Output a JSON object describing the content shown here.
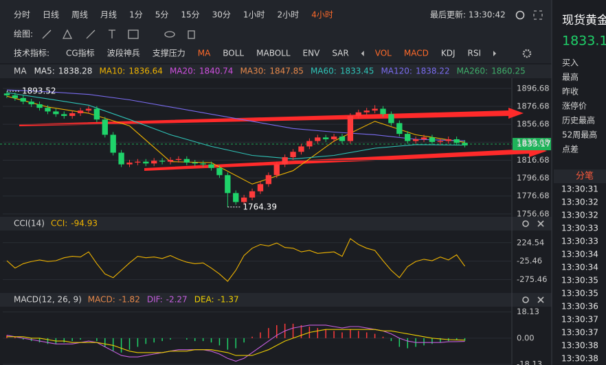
{
  "toolbar": {
    "timeframes": [
      "分时",
      "日线",
      "周线",
      "月线",
      "1分",
      "5分",
      "15分",
      "30分",
      "1小时",
      "2小时",
      "4小时"
    ],
    "active_timeframe": 10,
    "last_update": "最后更新: 13:30:42",
    "drawing_label": "绘图:",
    "indicator_label": "技术指标:",
    "indicators": [
      "CG指标",
      "波段神兵",
      "支撑压力",
      "MA",
      "BOLL",
      "MABOLL",
      "ENV",
      "SAR",
      "VOL",
      "MACD",
      "KDJ",
      "RSI"
    ],
    "highlighted_indicators": [
      3,
      8,
      9
    ]
  },
  "chart_data": [
    {
      "type": "candlestick",
      "legend_title": "MA",
      "ma_legend": [
        {
          "name": "MA5:",
          "value": 1838.28,
          "color": "#e8e8e8"
        },
        {
          "name": "MA10:",
          "value": 1836.64,
          "color": "#f0b400"
        },
        {
          "name": "MA20:",
          "value": 1840.74,
          "color": "#d050e0"
        },
        {
          "name": "MA30:",
          "value": 1847.85,
          "color": "#e8894a"
        },
        {
          "name": "MA60:",
          "value": 1833.45,
          "color": "#2fc4b8"
        },
        {
          "name": "MA120:",
          "value": 1838.22,
          "color": "#7a6cf0"
        },
        {
          "name": "MA260:",
          "value": 1860.25,
          "color": "#3fae6a"
        }
      ],
      "up_color": "#ff3b3b",
      "down_color": "#1fd36a",
      "candles": [
        [
          1891,
          1893.52,
          1886,
          1889
        ],
        [
          1889,
          1892,
          1883,
          1886
        ],
        [
          1886,
          1889,
          1879,
          1882
        ],
        [
          1882,
          1885,
          1876,
          1879
        ],
        [
          1879,
          1882,
          1872,
          1875
        ],
        [
          1875,
          1878,
          1868,
          1871
        ],
        [
          1871,
          1874,
          1865,
          1868
        ],
        [
          1868,
          1871,
          1863,
          1866
        ],
        [
          1866,
          1872,
          1863,
          1869
        ],
        [
          1869,
          1875,
          1866,
          1872
        ],
        [
          1872,
          1877,
          1869,
          1874
        ],
        [
          1874,
          1877,
          1859,
          1862
        ],
        [
          1862,
          1865,
          1842,
          1845
        ],
        [
          1845,
          1848,
          1822,
          1825
        ],
        [
          1825,
          1828,
          1809,
          1812
        ],
        [
          1812,
          1817,
          1809,
          1814
        ],
        [
          1814,
          1818,
          1811,
          1815
        ],
        [
          1815,
          1818,
          1810,
          1813
        ],
        [
          1813,
          1819,
          1810,
          1816
        ],
        [
          1816,
          1819,
          1812,
          1815
        ],
        [
          1815,
          1820,
          1812,
          1817
        ],
        [
          1817,
          1821,
          1814,
          1818
        ],
        [
          1818,
          1821,
          1811,
          1814
        ],
        [
          1814,
          1817,
          1810,
          1813
        ],
        [
          1813,
          1816,
          1809,
          1812
        ],
        [
          1812,
          1815,
          1805,
          1808
        ],
        [
          1808,
          1811,
          1797,
          1800
        ],
        [
          1800,
          1803,
          1764.39,
          1780
        ],
        [
          1780,
          1783,
          1767,
          1770
        ],
        [
          1770,
          1778,
          1767,
          1775
        ],
        [
          1775,
          1785,
          1772,
          1782
        ],
        [
          1782,
          1793,
          1779,
          1790
        ],
        [
          1790,
          1803,
          1787,
          1800
        ],
        [
          1800,
          1815,
          1797,
          1812
        ],
        [
          1812,
          1823,
          1809,
          1820
        ],
        [
          1820,
          1829,
          1817,
          1826
        ],
        [
          1826,
          1835,
          1823,
          1832
        ],
        [
          1832,
          1841,
          1829,
          1838
        ],
        [
          1838,
          1845,
          1835,
          1842
        ],
        [
          1842,
          1845,
          1837,
          1840
        ],
        [
          1840,
          1846,
          1837,
          1843
        ],
        [
          1843,
          1846,
          1835,
          1838
        ],
        [
          1838,
          1869,
          1835,
          1866
        ],
        [
          1866,
          1873,
          1863,
          1870
        ],
        [
          1870,
          1875,
          1867,
          1872
        ],
        [
          1872,
          1878,
          1869,
          1874
        ],
        [
          1874,
          1877,
          1865,
          1868
        ],
        [
          1868,
          1871,
          1855,
          1858
        ],
        [
          1858,
          1861,
          1843,
          1846
        ],
        [
          1846,
          1849,
          1835,
          1838
        ],
        [
          1838,
          1843,
          1835,
          1840
        ],
        [
          1840,
          1845,
          1837,
          1842
        ],
        [
          1842,
          1845,
          1834,
          1837
        ],
        [
          1837,
          1841,
          1834,
          1838
        ],
        [
          1838,
          1843,
          1835,
          1840
        ],
        [
          1840,
          1843,
          1833,
          1836
        ],
        [
          1836,
          1839,
          1831,
          1833.17
        ]
      ],
      "series": [
        {
          "color": "#f0b400",
          "x": [
            0,
            5,
            10,
            15,
            20,
            25,
            30,
            35,
            40,
            45,
            50,
            56
          ],
          "values": [
            1888,
            1876,
            1869,
            1855,
            1815,
            1814,
            1790,
            1805,
            1838,
            1860,
            1845,
            1836.64
          ]
        },
        {
          "color": "#2fc4b8",
          "x": [
            0,
            5,
            10,
            15,
            20,
            25,
            30,
            35,
            40,
            45,
            50,
            56
          ],
          "values": [
            1892,
            1885,
            1878,
            1862,
            1845,
            1832,
            1822,
            1818,
            1822,
            1830,
            1834,
            1833.45
          ]
        },
        {
          "color": "#7a6cf0",
          "x": [
            0,
            5,
            10,
            15,
            20,
            25,
            30,
            35,
            40,
            45,
            50,
            56
          ],
          "values": [
            1895,
            1893,
            1890,
            1884,
            1876,
            1868,
            1860,
            1852,
            1848,
            1845,
            1840,
            1838.22
          ]
        }
      ],
      "xlim": [
        -0.5,
        61.5
      ],
      "ylim": [
        1752,
        1905
      ],
      "yticks": [
        1896.68,
        1876.68,
        1856.68,
        1836.68,
        1816.68,
        1796.68,
        1776.68,
        1756.68
      ]
    },
    {
      "type": "line",
      "title": "CCI(14)",
      "value_name": "CCI:",
      "current": -94.93,
      "color": "#f0b400",
      "values": [
        -20,
        -120,
        -60,
        -30,
        -10,
        -30,
        -20,
        20,
        40,
        30,
        100,
        -60,
        -200,
        -250,
        -150,
        -50,
        40,
        20,
        30,
        10,
        50,
        0,
        -40,
        -60,
        -50,
        -120,
        -200,
        -300,
        -150,
        50,
        150,
        200,
        180,
        220,
        160,
        150,
        100,
        120,
        80,
        90,
        100,
        40,
        280,
        200,
        150,
        120,
        -20,
        -150,
        -250,
        -100,
        -30,
        0,
        -20,
        30,
        -10,
        60,
        -94.93
      ],
      "xlim": [
        -0.5,
        61.5
      ],
      "ylim": [
        -430,
        390
      ],
      "yticks": [
        224.54,
        -25.46,
        -275.46
      ]
    },
    {
      "type": "macd",
      "title": "MACD(12, 26, 9)",
      "legend": [
        {
          "name": "MACD:",
          "value": -1.82,
          "color": "#e8894a"
        },
        {
          "name": "DIF:",
          "value": -2.27,
          "color": "#c65fe0"
        },
        {
          "name": "DEA:",
          "value": -1.37,
          "color": "#f0d000"
        }
      ],
      "up_color": "#ff3b3b",
      "down_color": "#1fd36a",
      "histogram": [
        2,
        1,
        -1,
        -2,
        -3,
        -4,
        -4,
        -3,
        -2,
        -1,
        0,
        -2,
        -6,
        -9,
        -10,
        -8,
        -6,
        -4,
        -3,
        -2,
        -1,
        0,
        -1,
        -2,
        -2,
        -3,
        -5,
        -8,
        -7,
        -3,
        1,
        4,
        7,
        9,
        10,
        10,
        9,
        8,
        7,
        6,
        5,
        4,
        6,
        5,
        4,
        3,
        1,
        -2,
        -6,
        -7,
        -6,
        -5,
        -4,
        -3,
        -2,
        -1,
        -1.82
      ],
      "dif": [
        2,
        1,
        0,
        -1,
        -2,
        -3,
        -4,
        -4,
        -4,
        -3,
        -2,
        -3,
        -6,
        -9,
        -12,
        -13,
        -13,
        -12,
        -11,
        -10,
        -9,
        -8,
        -8,
        -8,
        -8,
        -9,
        -11,
        -14,
        -16,
        -14,
        -10,
        -6,
        -2,
        2,
        5,
        7,
        8,
        9,
        9,
        9,
        8,
        7,
        8,
        8,
        7,
        6,
        5,
        3,
        0,
        -2,
        -3,
        -3,
        -3,
        -3,
        -2.5,
        -2.4,
        -2.27
      ],
      "dea": [
        1,
        1,
        1,
        0,
        0,
        -1,
        -2,
        -2,
        -3,
        -3,
        -3,
        -3,
        -4,
        -5,
        -7,
        -9,
        -10,
        -10,
        -10,
        -10,
        -9,
        -9,
        -9,
        -8,
        -8,
        -8,
        -9,
        -10,
        -12,
        -12,
        -12,
        -10,
        -8,
        -5,
        -2,
        0,
        2,
        4,
        5,
        6,
        6,
        6,
        6,
        6,
        6,
        6,
        5,
        5,
        4,
        3,
        2,
        1,
        0,
        -0.5,
        -1,
        -1.2,
        -1.37
      ],
      "xlim": [
        -0.5,
        61.5
      ],
      "ylim": [
        -18.6,
        21.8
      ],
      "yticks": [
        18.13,
        {
          "value": 0,
          "label": "0.00"
        },
        -18.13
      ]
    }
  ],
  "side_panel": {
    "title": "现货黄金",
    "labels": [
      "买入",
      "最高",
      "昨收",
      "涨停价",
      "历史最高",
      "52周最高",
      "点差"
    ],
    "ticks_title": "分笔",
    "times": [
      "13:30:31",
      "13:30:32",
      "13:30:32",
      "13:30:33",
      "13:30:33",
      "13:30:34",
      "13:30:34",
      "13:30:35",
      "13:30:35",
      "13:30:36",
      "13:30:37",
      "13:30:37",
      "13:30:38",
      "13:30:38"
    ]
  }
}
